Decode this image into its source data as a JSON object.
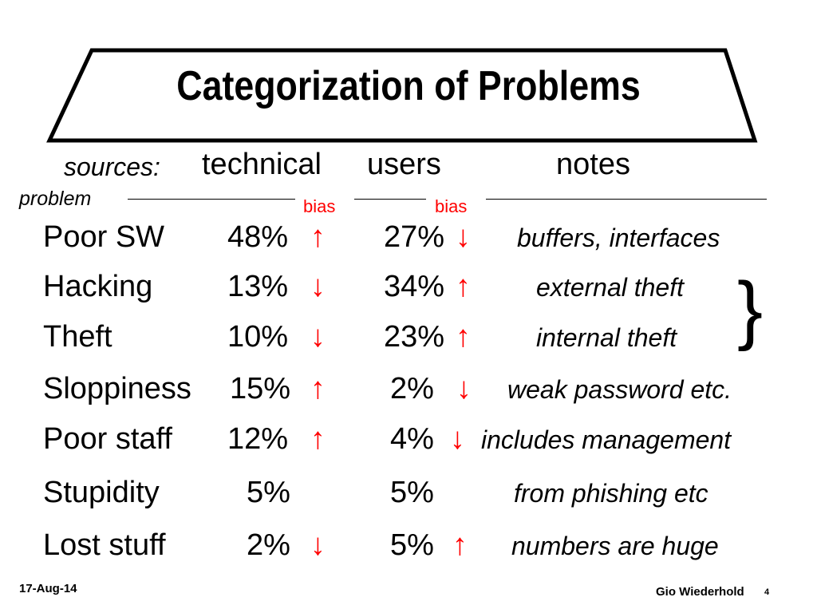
{
  "slide": {
    "title": "Categorization of Problems",
    "headers": {
      "sources_label": "sources:",
      "technical": "technical",
      "users": "users",
      "notes": "notes",
      "problem_label": "problem",
      "bias_1": "bias",
      "bias_2": "bias"
    },
    "rows": [
      {
        "problem": "Poor SW",
        "technical": "48%",
        "technical_arrow": "↑",
        "users": "27%",
        "users_arrow": "↓",
        "note": "buffers, interfaces"
      },
      {
        "problem": "Hacking",
        "technical": "13%",
        "technical_arrow": "↓",
        "users": "34%",
        "users_arrow": "↑",
        "note": "external theft"
      },
      {
        "problem": "Theft",
        "technical": "10%",
        "technical_arrow": "↓",
        "users": "23%",
        "users_arrow": "↑",
        "note": "internal theft"
      },
      {
        "problem": "Sloppiness",
        "technical": "15%",
        "technical_arrow": "↑",
        "users": "2%",
        "users_arrow": "↓",
        "note": "weak password etc."
      },
      {
        "problem": "Poor staff",
        "technical": "12%",
        "technical_arrow": "↑",
        "users": "4%",
        "users_arrow": "↓",
        "note": "includes management"
      },
      {
        "problem": "Stupidity",
        "technical": "5%",
        "technical_arrow": "",
        "users": "5%",
        "users_arrow": "",
        "note": "from phishing etc"
      },
      {
        "problem": "Lost stuff",
        "technical": "2%",
        "technical_arrow": "↓",
        "users": "5%",
        "users_arrow": "↑",
        "note": "numbers are huge"
      }
    ],
    "brace": "}",
    "footer": {
      "date": "17-Aug-14",
      "author": "Gio Wiederhold",
      "page": "4"
    },
    "colors": {
      "text": "#000000",
      "arrow": "#ff0000",
      "bias": "#ff0000",
      "background": "#ffffff"
    }
  }
}
